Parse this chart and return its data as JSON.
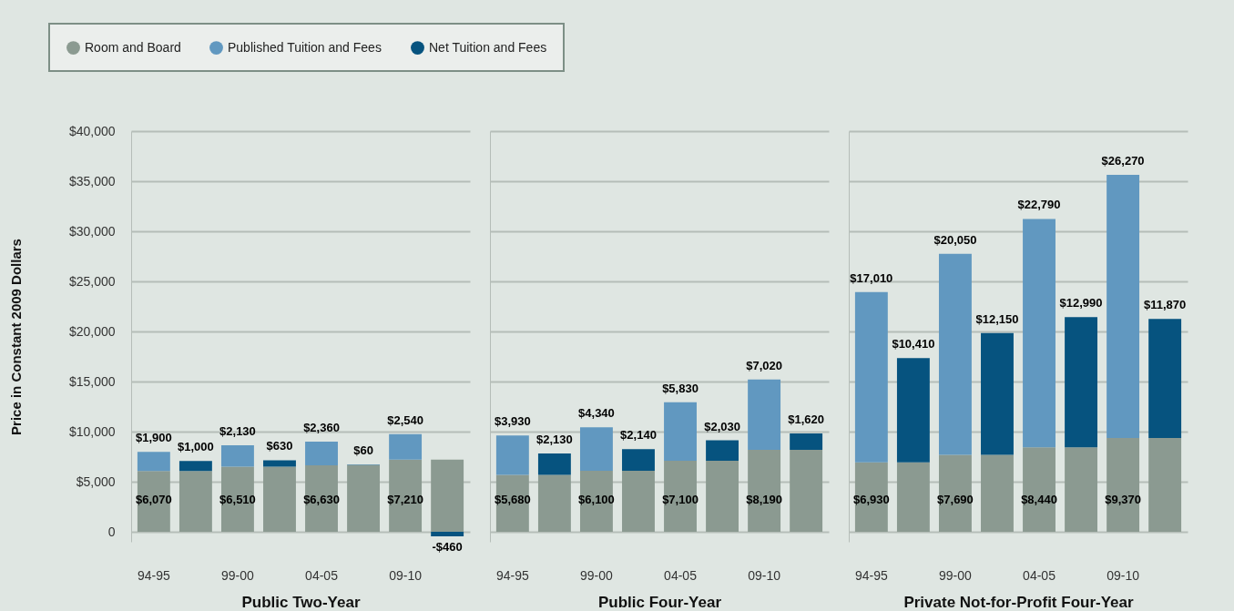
{
  "chart_data": [
    {
      "type": "bar",
      "stacked": true,
      "xlabel": "Public Two-Year",
      "ylabel": "Price in Constant 2009 Dollars",
      "legend": "top",
      "grid": "y",
      "categories": [
        "94-95",
        null,
        "99-00",
        null,
        "04-05",
        null,
        "09-10",
        null
      ],
      "ylim": [
        -1000,
        40000
      ],
      "yticks": [
        0,
        {
          "value": 5000,
          "label": "$5,000"
        },
        {
          "value": 10000,
          "label": "$10,000"
        },
        {
          "value": 15000,
          "label": "$15,000"
        },
        {
          "value": 20000,
          "label": "$20,000"
        },
        {
          "value": 25000,
          "label": "$25,000"
        },
        {
          "value": 30000,
          "label": "$30,000"
        },
        {
          "value": 35000,
          "label": "$35,000"
        },
        {
          "value": 40000,
          "label": "$40,000"
        }
      ],
      "series": [
        {
          "name": "Room and Board",
          "color": "#8b9a91",
          "values": [
            6070,
            6070,
            6510,
            6510,
            6630,
            6630,
            7210,
            7210
          ],
          "value_labels": [
            "$6,070",
            null,
            "$6,510",
            null,
            "$6,630",
            null,
            "$7,210",
            null
          ]
        },
        {
          "name": "Published Tuition and Fees",
          "color": "#6198c0",
          "values": [
            1900,
            null,
            2130,
            null,
            2360,
            null,
            2540,
            null
          ],
          "value_labels": [
            "$1,900",
            null,
            "$2,130",
            null,
            "$2,360",
            null,
            "$2,540",
            null
          ]
        },
        {
          "name": "Net Tuition and Fees",
          "color": "#06537f",
          "values": [
            null,
            1000,
            null,
            630,
            null,
            60,
            null,
            -460
          ],
          "value_labels": [
            null,
            "$1,000",
            null,
            "$630",
            null,
            "$60",
            null,
            "-$460"
          ]
        }
      ]
    },
    {
      "type": "bar",
      "stacked": true,
      "xlabel": "Public Four-Year",
      "grid": "y",
      "tick_labels": "x",
      "categories": [
        "94-95",
        null,
        "99-00",
        null,
        "04-05",
        null,
        "09-10",
        null
      ],
      "ylim": [
        -1000,
        40000
      ],
      "yticks": [
        {
          "value": 0,
          "label": null
        },
        {
          "value": 5000,
          "label": null
        },
        {
          "value": 10000,
          "label": null
        },
        {
          "value": 15000,
          "label": null
        },
        {
          "value": 20000,
          "label": null
        },
        {
          "value": 25000,
          "label": null
        },
        {
          "value": 30000,
          "label": null
        },
        {
          "value": 35000,
          "label": null
        },
        {
          "value": 40000,
          "label": null
        }
      ],
      "series": [
        {
          "color": "#8b9a91",
          "values": [
            5680,
            5680,
            6100,
            6100,
            7100,
            7100,
            8190,
            8190
          ],
          "value_labels": [
            "$5,680",
            null,
            "$6,100",
            null,
            "$7,100",
            null,
            "$8,190",
            null
          ]
        },
        {
          "color": "#6198c0",
          "values": [
            3930,
            null,
            4340,
            null,
            5830,
            null,
            7020,
            null
          ],
          "value_labels": [
            "$3,930",
            null,
            "$4,340",
            null,
            "$5,830",
            null,
            "$7,020",
            null
          ]
        },
        {
          "color": "#06537f",
          "values": [
            null,
            2130,
            null,
            2140,
            null,
            2030,
            null,
            1620
          ],
          "value_labels": [
            null,
            "$2,130",
            null,
            "$2,140",
            null,
            "$2,030",
            null,
            "$1,620"
          ]
        }
      ]
    },
    {
      "type": "bar",
      "stacked": true,
      "xlabel": "Private Not-for-Profit Four-Year",
      "grid": "y",
      "tick_labels": "x",
      "categories": [
        "94-95",
        null,
        "99-00",
        null,
        "04-05",
        null,
        "09-10",
        null
      ],
      "ylim": [
        -1000,
        40000
      ],
      "yticks": [
        {
          "value": 0,
          "label": null
        },
        {
          "value": 5000,
          "label": null
        },
        {
          "value": 10000,
          "label": null
        },
        {
          "value": 15000,
          "label": null
        },
        {
          "value": 20000,
          "label": null
        },
        {
          "value": 25000,
          "label": null
        },
        {
          "value": 30000,
          "label": null
        },
        {
          "value": 35000,
          "label": null
        },
        {
          "value": 40000,
          "label": null
        }
      ],
      "series": [
        {
          "color": "#8b9a91",
          "values": [
            6930,
            6930,
            7690,
            7690,
            8440,
            8440,
            9370,
            9370
          ],
          "value_labels": [
            "$6,930",
            null,
            "$7,690",
            null,
            "$8,440",
            null,
            "$9,370",
            null
          ]
        },
        {
          "color": "#6198c0",
          "values": [
            17010,
            null,
            20050,
            null,
            22790,
            null,
            26270,
            null
          ],
          "value_labels": [
            "$17,010",
            null,
            "$20,050",
            null,
            "$22,790",
            null,
            "$26,270",
            null
          ]
        },
        {
          "color": "#06537f",
          "values": [
            null,
            10410,
            null,
            12150,
            null,
            12990,
            null,
            11870
          ],
          "value_labels": [
            null,
            "$10,410",
            null,
            "$12,150",
            null,
            "$12,990",
            null,
            "$11,870"
          ]
        }
      ]
    }
  ]
}
